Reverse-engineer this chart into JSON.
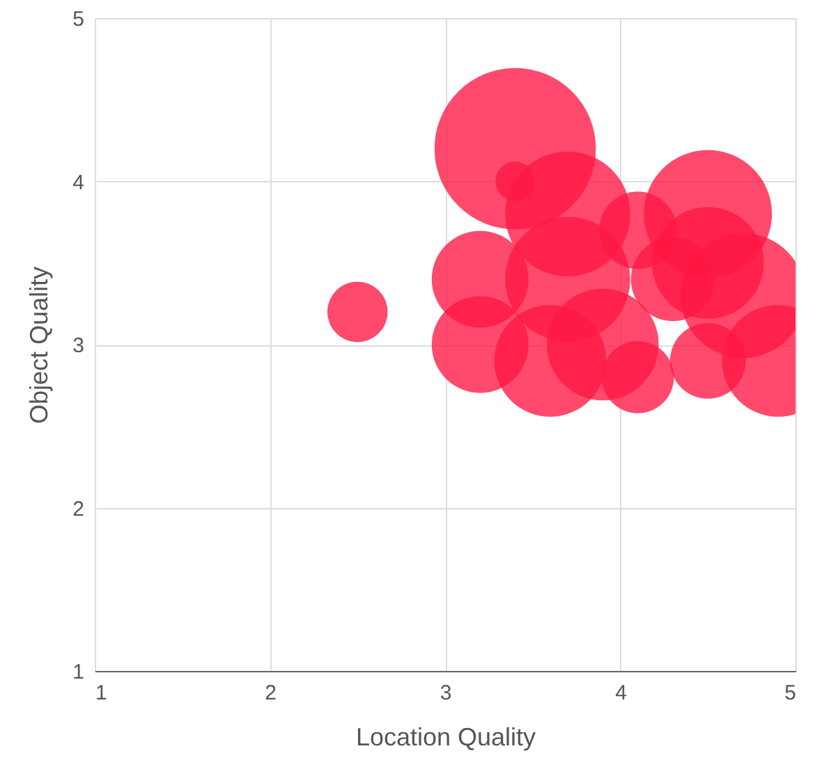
{
  "chart_data": {
    "type": "bubble",
    "xlabel": "Location Quality",
    "ylabel": "Object Quality",
    "xlim": [
      1,
      5
    ],
    "ylim": [
      1,
      5
    ],
    "xticks": [
      1,
      2,
      3,
      4,
      5
    ],
    "yticks": [
      1,
      2,
      3,
      4,
      5
    ],
    "grid": true,
    "series": [
      {
        "color": "#ff1744",
        "x": [
          2.5,
          3.4,
          3.4,
          3.7,
          4.5,
          3.2,
          3.2,
          3.6,
          4.1,
          4.5,
          4.9,
          4.7,
          4.1,
          4.3,
          3.9,
          3.7,
          4.5
        ],
        "values": [
          3.2,
          4.2,
          4.0,
          3.8,
          3.8,
          3.4,
          3.0,
          2.9,
          2.8,
          2.9,
          2.9,
          3.3,
          3.7,
          3.4,
          3.0,
          3.4,
          3.5
        ],
        "sizes": [
          0.14,
          1,
          0.06,
          0.6,
          0.63,
          0.36,
          0.36,
          0.48,
          0.2,
          0.22,
          0.48,
          0.6,
          0.23,
          0.27,
          0.48,
          0.6,
          0.48
        ]
      }
    ]
  }
}
